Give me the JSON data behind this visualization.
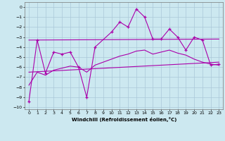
{
  "bg_color": "#cce8f0",
  "grid_color": "#aac8d8",
  "line_color": "#aa00aa",
  "xlim": [
    -0.5,
    23.5
  ],
  "ylim": [
    -10.2,
    0.5
  ],
  "yticks": [
    0,
    -1,
    -2,
    -3,
    -4,
    -5,
    -6,
    -7,
    -8,
    -9,
    -10
  ],
  "xticks": [
    0,
    1,
    2,
    3,
    4,
    5,
    6,
    7,
    8,
    9,
    10,
    11,
    12,
    13,
    14,
    15,
    16,
    17,
    18,
    19,
    20,
    21,
    22,
    23
  ],
  "xlabel": "Windchill (Refroidissement éolien,°C)",
  "main_x": [
    0,
    1,
    2,
    3,
    4,
    5,
    6,
    7,
    8,
    10,
    11,
    12,
    13,
    14,
    15,
    16,
    17,
    18,
    19,
    20,
    21,
    22,
    23
  ],
  "main_y": [
    -9.4,
    -3.3,
    -6.6,
    -4.5,
    -4.7,
    -4.5,
    -6.0,
    -9.0,
    -4.0,
    -2.5,
    -1.5,
    -2.0,
    -0.2,
    -1.0,
    -3.2,
    -3.2,
    -2.2,
    -3.0,
    -4.3,
    -3.0,
    -3.3,
    -5.8,
    -5.7
  ],
  "trend1_x": [
    0,
    23
  ],
  "trend1_y": [
    -3.3,
    -3.2
  ],
  "trend2_x": [
    0,
    23
  ],
  "trend2_y": [
    -6.5,
    -5.5
  ],
  "smooth_x": [
    0,
    1,
    2,
    3,
    4,
    5,
    6,
    7,
    8,
    10,
    11,
    12,
    13,
    14,
    15,
    16,
    17,
    18,
    19,
    20,
    21,
    22,
    23
  ],
  "smooth_y": [
    -7.8,
    -6.5,
    -6.8,
    -6.3,
    -6.1,
    -5.9,
    -6.0,
    -6.5,
    -5.8,
    -5.2,
    -4.9,
    -4.7,
    -4.4,
    -4.3,
    -4.7,
    -4.5,
    -4.3,
    -4.6,
    -4.8,
    -5.2,
    -5.5,
    -5.7,
    -5.8
  ]
}
